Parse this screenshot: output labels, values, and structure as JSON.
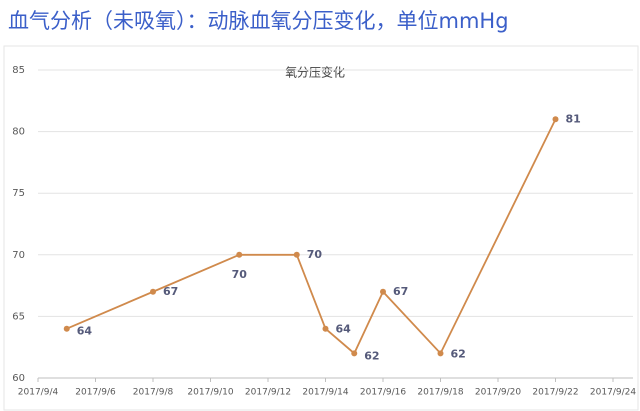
{
  "chart_data": {
    "type": "line",
    "title": "血气分析（未吸氧）：动脉血氧分压变化，单位mmHg",
    "subtitle": "氧分压变化",
    "x": [
      "2017/9/5",
      "2017/9/8",
      "2017/9/11",
      "2017/9/13",
      "2017/9/14",
      "2017/9/15",
      "2017/9/16",
      "2017/9/18",
      "2017/9/22"
    ],
    "series": [
      {
        "name": "氧分压",
        "color": "#d08a4c",
        "values": [
          64,
          67,
          70,
          70,
          64,
          62,
          67,
          62,
          81
        ]
      }
    ],
    "xlim": [
      "2017/9/4",
      "2017/9/24"
    ],
    "xticks": [
      "2017/9/4",
      "2017/9/6",
      "2017/9/8",
      "2017/9/10",
      "2017/9/12",
      "2017/9/14",
      "2017/9/16",
      "2017/9/18",
      "2017/9/20",
      "2017/9/22",
      "2017/9/24"
    ],
    "ylim": [
      60,
      85
    ],
    "yticks": [
      60,
      65,
      70,
      75,
      80,
      85
    ],
    "grid": true
  }
}
